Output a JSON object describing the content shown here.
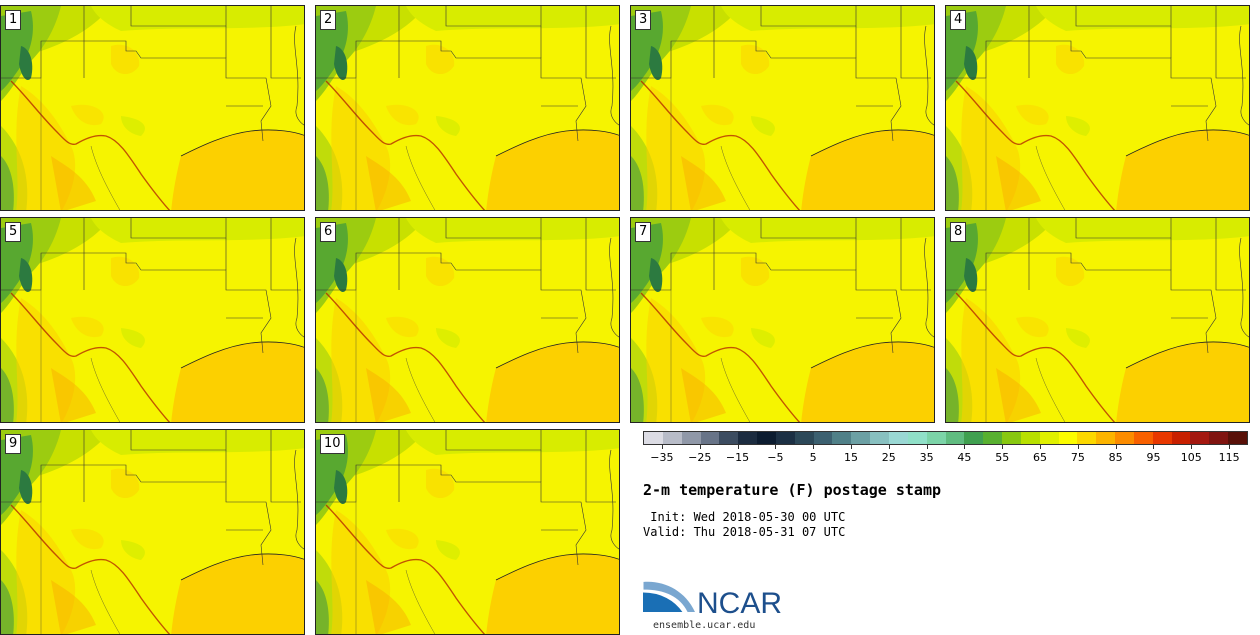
{
  "members": [
    "1",
    "2",
    "3",
    "4",
    "5",
    "6",
    "7",
    "8",
    "9",
    "10"
  ],
  "colorbar": {
    "colors": [
      "#dcdce4",
      "#b8bcc8",
      "#9098a8",
      "#687488",
      "#3c4c60",
      "#1c2c40",
      "#0c1c30",
      "#1c3044",
      "#2c4858",
      "#3c6070",
      "#508088",
      "#6ca0a4",
      "#88c0c0",
      "#9ad8d4",
      "#90e0c8",
      "#7cd4a8",
      "#60bc80",
      "#40a050",
      "#58b030",
      "#88c810",
      "#b8e000",
      "#e0f000",
      "#fcfc00",
      "#fcd800",
      "#fcb400",
      "#fc8c00",
      "#f86000",
      "#e83800",
      "#c82000",
      "#a41810",
      "#801410",
      "#581008"
    ],
    "tick_labels": [
      "−35",
      "−25",
      "−15",
      "−5",
      "5",
      "15",
      "25",
      "35",
      "45",
      "55",
      "65",
      "75",
      "85",
      "95",
      "105",
      "115"
    ]
  },
  "title": "2-m temperature (F) postage stamp",
  "init_text": " Init: Wed 2018-05-30 00 UTC",
  "valid_text": "Valid: Thu 2018-05-31 07 UTC",
  "logo_text": "NCAR",
  "url": "ensemble.ucar.edu"
}
